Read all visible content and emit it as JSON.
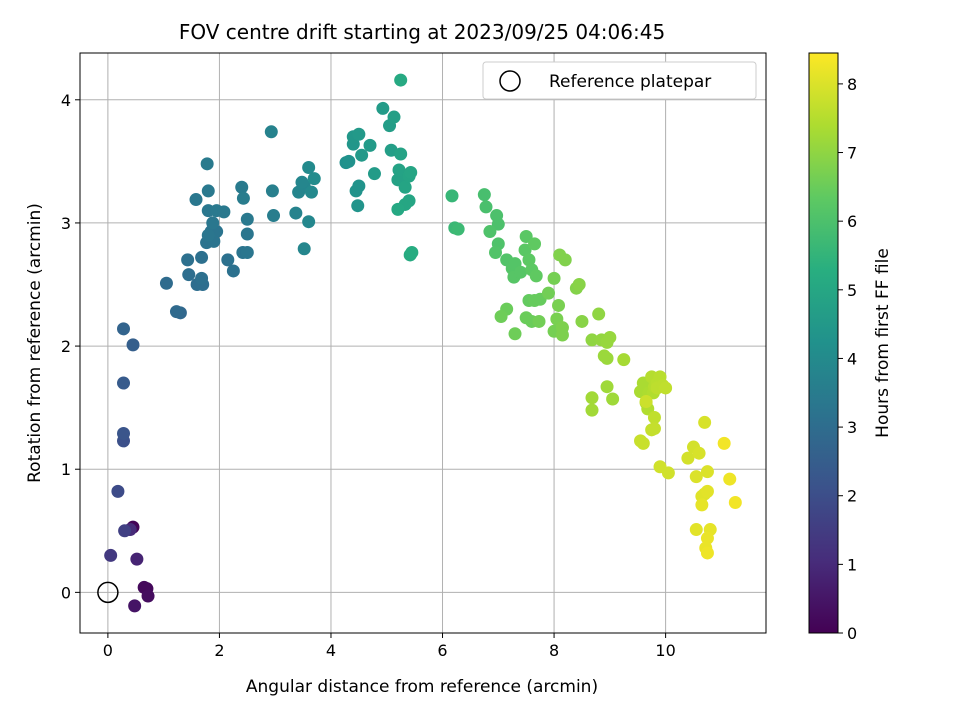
{
  "chart_data": {
    "type": "scatter",
    "title": "FOV centre drift starting at 2023/09/25 04:06:45",
    "xlabel": "Angular distance from reference (arcmin)",
    "ylabel": "Rotation from reference (arcmin)",
    "xlim": [
      -0.5,
      11.8
    ],
    "ylim": [
      -0.33,
      4.38
    ],
    "xticks": [
      0,
      2,
      4,
      6,
      8,
      10
    ],
    "yticks": [
      0,
      1,
      2,
      3,
      4
    ],
    "grid": true,
    "legend": {
      "placement": "top-right",
      "entries": [
        {
          "label": "Reference platepar",
          "marker": "open-circle"
        }
      ]
    },
    "reference_point": {
      "x": 0.0,
      "y": 0.0
    },
    "colorbar": {
      "label": "Hours from first FF file",
      "colormap": "viridis",
      "range": [
        0,
        8.45
      ],
      "ticks": [
        0,
        1,
        2,
        3,
        4,
        5,
        6,
        7,
        8
      ]
    },
    "points": [
      [
        0.45,
        0.53,
        0.05
      ],
      [
        0.7,
        0.03,
        0.15
      ],
      [
        0.65,
        0.04,
        0.2
      ],
      [
        0.72,
        -0.03,
        0.3
      ],
      [
        0.48,
        -0.11,
        0.45
      ],
      [
        0.52,
        0.27,
        0.85
      ],
      [
        0.4,
        0.51,
        1.0
      ],
      [
        0.05,
        0.3,
        1.4
      ],
      [
        0.3,
        0.5,
        1.6
      ],
      [
        0.18,
        0.82,
        1.9
      ],
      [
        0.28,
        1.23,
        2.05
      ],
      [
        0.28,
        1.29,
        2.2
      ],
      [
        0.28,
        1.7,
        2.4
      ],
      [
        0.45,
        2.01,
        2.55
      ],
      [
        0.28,
        2.14,
        2.7
      ],
      [
        1.3,
        2.27,
        2.85
      ],
      [
        1.23,
        2.28,
        2.9
      ],
      [
        1.05,
        2.51,
        2.95
      ],
      [
        1.6,
        2.5,
        3.0
      ],
      [
        1.7,
        2.5,
        3.05
      ],
      [
        1.45,
        2.58,
        3.05
      ],
      [
        1.68,
        2.55,
        3.1
      ],
      [
        1.43,
        2.7,
        3.1
      ],
      [
        1.68,
        2.72,
        3.1
      ],
      [
        2.25,
        2.61,
        3.15
      ],
      [
        2.15,
        2.7,
        3.15
      ],
      [
        1.77,
        2.84,
        3.2
      ],
      [
        1.85,
        2.93,
        3.2
      ],
      [
        1.95,
        2.93,
        3.25
      ],
      [
        1.9,
        2.85,
        3.25
      ],
      [
        2.42,
        2.76,
        3.25
      ],
      [
        2.5,
        2.76,
        3.3
      ],
      [
        2.5,
        2.91,
        3.3
      ],
      [
        1.8,
        2.9,
        3.3
      ],
      [
        1.88,
        3.0,
        3.35
      ],
      [
        2.5,
        3.03,
        3.4
      ],
      [
        1.58,
        3.19,
        3.35
      ],
      [
        1.8,
        3.1,
        3.35
      ],
      [
        1.95,
        3.1,
        3.4
      ],
      [
        2.08,
        3.09,
        3.4
      ],
      [
        1.8,
        3.26,
        3.4
      ],
      [
        1.78,
        3.48,
        3.45
      ],
      [
        2.4,
        3.29,
        3.45
      ],
      [
        2.43,
        3.2,
        3.5
      ],
      [
        2.97,
        3.06,
        3.55
      ],
      [
        2.95,
        3.26,
        3.6
      ],
      [
        2.93,
        3.74,
        3.7
      ],
      [
        3.37,
        3.08,
        3.75
      ],
      [
        3.42,
        3.25,
        3.8
      ],
      [
        3.52,
        3.3,
        3.8
      ],
      [
        3.48,
        3.33,
        3.85
      ],
      [
        3.52,
        2.79,
        3.85
      ],
      [
        3.6,
        3.01,
        3.9
      ],
      [
        3.65,
        3.25,
        3.95
      ],
      [
        3.6,
        3.45,
        4.0
      ],
      [
        3.7,
        3.36,
        4.05
      ],
      [
        4.27,
        3.49,
        4.2
      ],
      [
        4.32,
        3.5,
        4.25
      ],
      [
        4.45,
        3.26,
        4.3
      ],
      [
        4.5,
        3.3,
        4.3
      ],
      [
        4.48,
        3.14,
        4.35
      ],
      [
        4.4,
        3.64,
        4.4
      ],
      [
        4.4,
        3.7,
        4.45
      ],
      [
        4.5,
        3.72,
        4.5
      ],
      [
        4.55,
        3.55,
        4.5
      ],
      [
        4.7,
        3.63,
        4.55
      ],
      [
        4.78,
        3.4,
        4.6
      ],
      [
        4.93,
        3.93,
        4.6
      ],
      [
        5.05,
        3.79,
        4.65
      ],
      [
        5.08,
        3.59,
        4.7
      ],
      [
        5.13,
        3.86,
        4.75
      ],
      [
        5.2,
        3.35,
        4.8
      ],
      [
        5.27,
        3.35,
        4.8
      ],
      [
        5.25,
        3.56,
        4.85
      ],
      [
        5.22,
        3.43,
        4.85
      ],
      [
        5.33,
        3.29,
        4.9
      ],
      [
        5.4,
        3.38,
        4.9
      ],
      [
        5.43,
        3.41,
        4.95
      ],
      [
        5.4,
        3.18,
        4.95
      ],
      [
        5.33,
        3.15,
        5.0
      ],
      [
        5.2,
        3.11,
        5.05
      ],
      [
        5.25,
        4.16,
        5.1
      ],
      [
        5.42,
        2.74,
        5.15
      ],
      [
        5.45,
        2.76,
        5.2
      ],
      [
        6.17,
        3.22,
        5.6
      ],
      [
        6.22,
        2.96,
        5.65
      ],
      [
        6.28,
        2.95,
        5.7
      ],
      [
        6.75,
        3.23,
        5.9
      ],
      [
        6.78,
        3.13,
        5.95
      ],
      [
        6.97,
        3.06,
        6.0
      ],
      [
        7.0,
        2.99,
        6.0
      ],
      [
        6.85,
        2.93,
        6.05
      ],
      [
        7.0,
        2.83,
        6.05
      ],
      [
        6.95,
        2.76,
        6.1
      ],
      [
        7.15,
        2.7,
        6.1
      ],
      [
        7.25,
        2.63,
        6.15
      ],
      [
        7.3,
        2.67,
        6.15
      ],
      [
        7.28,
        2.56,
        6.2
      ],
      [
        7.4,
        2.6,
        6.2
      ],
      [
        7.48,
        2.78,
        6.25
      ],
      [
        7.5,
        2.89,
        6.25
      ],
      [
        7.55,
        2.7,
        6.3
      ],
      [
        7.6,
        2.62,
        6.3
      ],
      [
        7.68,
        2.57,
        6.35
      ],
      [
        7.65,
        2.83,
        6.35
      ],
      [
        7.55,
        2.37,
        6.4
      ],
      [
        7.65,
        2.37,
        6.45
      ],
      [
        7.75,
        2.38,
        6.45
      ],
      [
        7.5,
        2.23,
        6.5
      ],
      [
        7.6,
        2.2,
        6.5
      ],
      [
        7.15,
        2.3,
        6.5
      ],
      [
        7.05,
        2.24,
        6.55
      ],
      [
        7.3,
        2.1,
        6.55
      ],
      [
        7.73,
        2.2,
        6.6
      ],
      [
        7.9,
        2.43,
        6.6
      ],
      [
        8.0,
        2.12,
        6.65
      ],
      [
        8.0,
        2.55,
        6.65
      ],
      [
        8.05,
        2.22,
        6.7
      ],
      [
        8.08,
        2.33,
        6.7
      ],
      [
        8.15,
        2.15,
        6.75
      ],
      [
        8.15,
        2.09,
        6.75
      ],
      [
        8.1,
        2.74,
        6.8
      ],
      [
        8.2,
        2.7,
        6.8
      ],
      [
        8.4,
        2.47,
        6.85
      ],
      [
        8.45,
        2.5,
        6.9
      ],
      [
        8.5,
        2.2,
        6.9
      ],
      [
        8.68,
        2.05,
        7.0
      ],
      [
        8.8,
        2.26,
        7.0
      ],
      [
        8.85,
        2.05,
        7.05
      ],
      [
        8.95,
        2.03,
        7.1
      ],
      [
        9.0,
        2.07,
        7.1
      ],
      [
        8.9,
        1.92,
        7.15
      ],
      [
        8.95,
        1.9,
        7.15
      ],
      [
        8.95,
        1.67,
        7.2
      ],
      [
        9.05,
        1.57,
        7.2
      ],
      [
        8.68,
        1.58,
        7.25
      ],
      [
        8.68,
        1.48,
        7.25
      ],
      [
        9.25,
        1.89,
        7.3
      ],
      [
        9.55,
        1.63,
        7.35
      ],
      [
        9.6,
        1.7,
        7.35
      ],
      [
        9.65,
        1.54,
        7.4
      ],
      [
        9.7,
        1.62,
        7.4
      ],
      [
        9.68,
        1.49,
        7.45
      ],
      [
        9.78,
        1.62,
        7.45
      ],
      [
        9.8,
        1.67,
        7.5
      ],
      [
        9.75,
        1.75,
        7.5
      ],
      [
        9.85,
        1.7,
        7.55
      ],
      [
        9.9,
        1.75,
        7.55
      ],
      [
        9.85,
        1.66,
        7.6
      ],
      [
        9.95,
        1.68,
        7.6
      ],
      [
        10.0,
        1.66,
        7.65
      ],
      [
        9.8,
        1.42,
        7.65
      ],
      [
        9.75,
        1.32,
        7.7
      ],
      [
        9.8,
        1.33,
        7.7
      ],
      [
        9.55,
        1.23,
        7.75
      ],
      [
        9.6,
        1.21,
        7.75
      ],
      [
        9.65,
        1.55,
        7.8
      ],
      [
        9.9,
        1.02,
        7.85
      ],
      [
        10.05,
        0.97,
        7.85
      ],
      [
        10.4,
        1.09,
        7.9
      ],
      [
        10.5,
        1.18,
        7.9
      ],
      [
        10.6,
        1.13,
        7.95
      ],
      [
        10.7,
        1.38,
        7.95
      ],
      [
        10.75,
        0.98,
        8.0
      ],
      [
        10.55,
        0.94,
        8.0
      ],
      [
        10.65,
        0.78,
        8.05
      ],
      [
        10.7,
        0.8,
        8.05
      ],
      [
        10.75,
        0.82,
        8.1
      ],
      [
        10.55,
        0.51,
        8.1
      ],
      [
        10.65,
        0.71,
        8.15
      ],
      [
        10.8,
        0.51,
        8.15
      ],
      [
        10.75,
        0.44,
        8.2
      ],
      [
        10.72,
        0.36,
        8.2
      ],
      [
        10.75,
        0.32,
        8.25
      ],
      [
        11.15,
        0.92,
        8.25
      ],
      [
        11.05,
        1.21,
        8.3
      ],
      [
        11.25,
        0.73,
        8.3
      ]
    ]
  }
}
